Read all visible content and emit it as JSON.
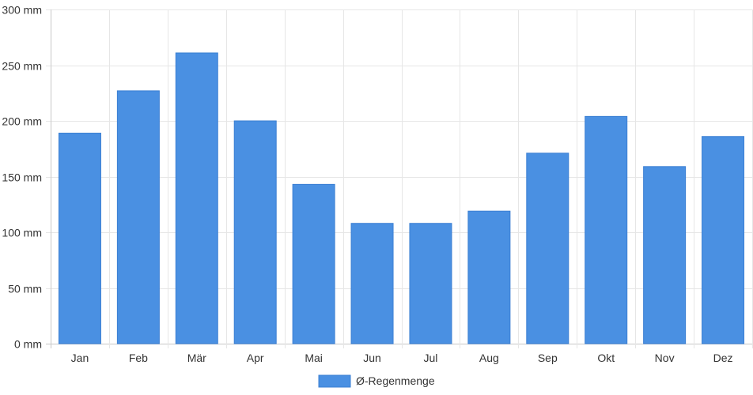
{
  "chart_data": {
    "type": "bar",
    "categories": [
      "Jan",
      "Feb",
      "Mär",
      "Apr",
      "Mai",
      "Jun",
      "Jul",
      "Aug",
      "Sep",
      "Okt",
      "Nov",
      "Dez"
    ],
    "series": [
      {
        "name": "Ø-Regenmenge",
        "values": [
          189,
          227,
          261,
          200,
          143,
          108,
          108,
          119,
          171,
          204,
          159,
          186
        ],
        "color": "#4a90e2"
      }
    ],
    "ylim": [
      0,
      300
    ],
    "yticks": [
      {
        "value": 0,
        "label": "0 mm"
      },
      {
        "value": 50,
        "label": "50 mm"
      },
      {
        "value": 100,
        "label": "100 mm"
      },
      {
        "value": 150,
        "label": "150 mm"
      },
      {
        "value": 200,
        "label": "200 mm"
      },
      {
        "value": 250,
        "label": "250 mm"
      },
      {
        "value": 300,
        "label": "300 mm"
      }
    ],
    "grid": true,
    "legend_position": "bottom-center"
  }
}
